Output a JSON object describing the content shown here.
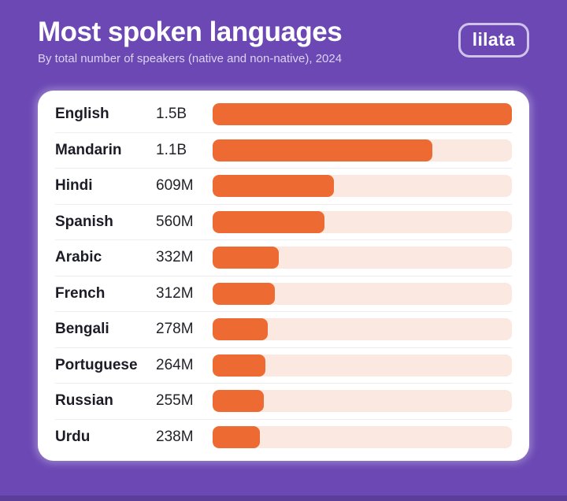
{
  "header": {
    "title": "Most spoken languages",
    "subtitle": "By total number of speakers (native and non-native), 2024",
    "logo_label": "lilata"
  },
  "colors": {
    "background": "#6B48B4",
    "background_bottom_strip": "#5B3E99",
    "card_background": "#FFFFFF",
    "bar_fill": "#EE6A33",
    "bar_track": "#FBE9E1",
    "title_text": "#FFFFFF",
    "subtitle_text": "#DDD3F2",
    "label_text": "#1C1C26",
    "row_divider": "#EDECF1",
    "logo_border": "rgba(255,255,255,0.68)"
  },
  "chart_data": {
    "type": "bar",
    "orientation": "horizontal",
    "title": "Most spoken languages",
    "subtitle": "By total number of speakers (native and non-native), 2024",
    "unit": "total speakers (native and non-native)",
    "year": "2024",
    "categories": [
      "English",
      "Mandarin",
      "Hindi",
      "Spanish",
      "Arabic",
      "French",
      "Bengali",
      "Portuguese",
      "Russian",
      "Urdu"
    ],
    "values_millions": [
      1500,
      1100,
      609,
      560,
      332,
      312,
      278,
      264,
      255,
      238
    ],
    "value_labels": [
      "1.5B",
      "1.1B",
      "609M",
      "560M",
      "332M",
      "312M",
      "278M",
      "264M",
      "255M",
      "238M"
    ],
    "xlim_millions": [
      0,
      1500
    ],
    "grid": false,
    "legend": false
  }
}
